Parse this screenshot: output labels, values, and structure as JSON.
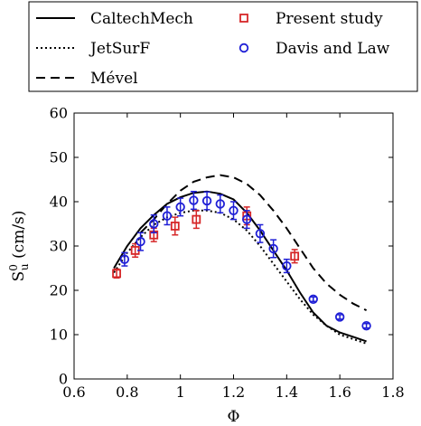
{
  "chart_data": {
    "type": "line",
    "xlabel": "Φ",
    "ylabel": "S",
    "ylabel_sup": "0",
    "ylabel_sub": "u",
    "ylabel_units": " (cm/s)",
    "xlim": [
      0.6,
      1.8
    ],
    "ylim": [
      0,
      60
    ],
    "xticks": [
      "0.6",
      "0.8",
      "1",
      "1.2",
      "1.4",
      "1.6",
      "1.8"
    ],
    "yticks": [
      "0",
      "10",
      "20",
      "30",
      "40",
      "50",
      "60"
    ],
    "legend_position": "above",
    "series": [
      {
        "name": "CaltechMech",
        "kind": "line",
        "style": "solid",
        "color": "#000000",
        "x": [
          0.75,
          0.8,
          0.85,
          0.9,
          0.95,
          1.0,
          1.05,
          1.1,
          1.15,
          1.2,
          1.25,
          1.3,
          1.35,
          1.4,
          1.45,
          1.5,
          1.55,
          1.6,
          1.65,
          1.7
        ],
        "y": [
          25.0,
          30.0,
          34.0,
          37.0,
          39.5,
          41.0,
          42.0,
          42.3,
          41.8,
          40.5,
          37.5,
          33.5,
          29.0,
          24.5,
          19.5,
          15.0,
          12.0,
          10.5,
          9.5,
          8.5
        ]
      },
      {
        "name": "JetSurF",
        "kind": "line",
        "style": "dotted",
        "color": "#000000",
        "x": [
          0.75,
          0.8,
          0.85,
          0.9,
          0.95,
          1.0,
          1.05,
          1.1,
          1.15,
          1.2,
          1.25,
          1.3,
          1.35,
          1.4,
          1.45,
          1.5,
          1.55,
          1.6,
          1.65,
          1.7
        ],
        "y": [
          24.0,
          28.5,
          32.0,
          34.8,
          36.5,
          37.5,
          38.0,
          38.0,
          37.5,
          36.0,
          33.5,
          30.0,
          26.0,
          22.0,
          18.0,
          14.5,
          12.0,
          10.0,
          9.0,
          8.0
        ]
      },
      {
        "name": "Mével",
        "kind": "line",
        "style": "dashed",
        "color": "#000000",
        "x": [
          0.85,
          0.9,
          0.95,
          1.0,
          1.05,
          1.1,
          1.15,
          1.2,
          1.25,
          1.3,
          1.35,
          1.4,
          1.45,
          1.5,
          1.55,
          1.6,
          1.65,
          1.7
        ],
        "y": [
          33.0,
          36.0,
          39.5,
          42.5,
          44.5,
          45.5,
          46.0,
          45.5,
          44.0,
          41.5,
          38.0,
          34.0,
          29.5,
          25.0,
          21.5,
          19.0,
          17.0,
          15.5
        ]
      },
      {
        "name": "Present study",
        "kind": "marker",
        "marker": "square",
        "color": "#d62728",
        "x": [
          0.76,
          0.83,
          0.9,
          0.98,
          1.06,
          1.25,
          1.43
        ],
        "y": [
          23.8,
          29.0,
          32.5,
          34.5,
          36.0,
          36.8,
          27.7
        ],
        "err": [
          1.0,
          1.5,
          1.5,
          2.0,
          2.0,
          2.0,
          1.5
        ]
      },
      {
        "name": "Davis and Law",
        "kind": "marker",
        "marker": "circle",
        "color": "#1f1fd6",
        "x": [
          0.79,
          0.85,
          0.9,
          0.95,
          1.0,
          1.05,
          1.1,
          1.15,
          1.2,
          1.25,
          1.3,
          1.35,
          1.4,
          1.5,
          1.6,
          1.7
        ],
        "y": [
          27.0,
          31.0,
          35.0,
          36.8,
          38.8,
          40.3,
          40.2,
          39.5,
          38.0,
          36.0,
          32.8,
          29.4,
          25.5,
          18.0,
          14.0,
          12.0
        ],
        "err": [
          1.5,
          2.0,
          2.0,
          2.0,
          2.0,
          2.0,
          2.0,
          2.0,
          2.0,
          2.0,
          2.0,
          2.0,
          1.5,
          0.5,
          0.5,
          0.5
        ]
      }
    ]
  }
}
